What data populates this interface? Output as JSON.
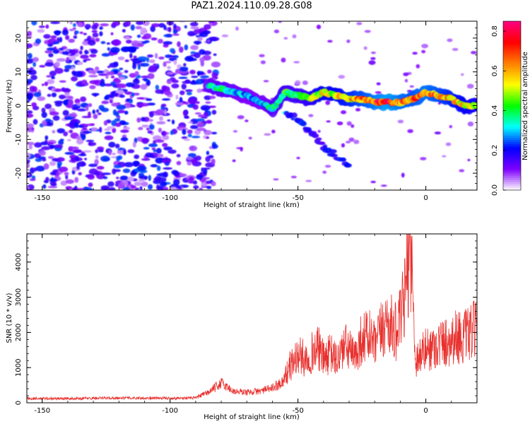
{
  "figure": {
    "title": "PAZ1.2024.110.09.28.G08"
  },
  "chart_data": [
    {
      "type": "heatmap",
      "xlabel": "Height of straight line (km)",
      "ylabel": "Frequency (Hz)",
      "xlim": [
        -156,
        20
      ],
      "ylim": [
        -25,
        25
      ],
      "x_ticks": [
        -150,
        -100,
        -50,
        0
      ],
      "y_ticks": [
        -20,
        -10,
        0,
        10,
        20
      ],
      "colorbar": {
        "label": "Normalized spectral amplitude",
        "range": [
          0.0,
          0.85
        ],
        "ticks": [
          0.0,
          0.2,
          0.4,
          0.6,
          0.8
        ],
        "colormap": [
          "#ffffff",
          "#7f00ff",
          "#0000ff",
          "#00ffff",
          "#00ff00",
          "#ffff00",
          "#ff8000",
          "#ff0000",
          "#ff0080"
        ]
      },
      "ridge": {
        "description_values": "dominant frequency (Hz) vs height (km)",
        "x": [
          -85,
          -80,
          -75,
          -70,
          -65,
          -60,
          -55,
          -50,
          -45,
          -40,
          -35,
          -30,
          -25,
          -20,
          -15,
          -10,
          -5,
          0,
          5,
          10,
          15,
          20
        ],
        "y": [
          6,
          5,
          4,
          3,
          1,
          -1,
          4,
          3,
          2,
          4,
          3,
          2,
          2,
          1,
          1,
          1,
          2,
          4,
          3,
          2,
          0,
          0
        ],
        "amplitude": [
          0.35,
          0.4,
          0.35,
          0.3,
          0.3,
          0.4,
          0.45,
          0.45,
          0.5,
          0.6,
          0.6,
          0.65,
          0.7,
          0.75,
          0.8,
          0.75,
          0.7,
          0.75,
          0.7,
          0.65,
          0.6,
          0.55
        ]
      },
      "branch": {
        "x": [
          -55,
          -50,
          -45,
          -40,
          -35,
          -30
        ],
        "y": [
          -2,
          -4,
          -8,
          -12,
          -15,
          -18
        ],
        "amplitude": [
          0.3,
          0.25,
          0.2,
          0.2,
          0.25,
          0.2
        ]
      },
      "noise_region": {
        "x_range": [
          -156,
          -82
        ],
        "amplitude": 0.25
      }
    },
    {
      "type": "line",
      "xlabel": "Height of straight line (km)",
      "ylabel": "SNR (10 * v/v)",
      "xlim": [
        -156,
        20
      ],
      "ylim": [
        0,
        4800
      ],
      "x_ticks": [
        -150,
        -100,
        -50,
        0
      ],
      "y_ticks": [
        0,
        1000,
        2000,
        3000,
        4000
      ],
      "series": [
        {
          "color": "#e8312e",
          "x": [
            -156,
            -140,
            -120,
            -100,
            -90,
            -85,
            -80,
            -75,
            -70,
            -65,
            -60,
            -56,
            -53,
            -50,
            -47,
            -45,
            -42,
            -40,
            -37,
            -35,
            -32,
            -30,
            -28,
            -25,
            -22,
            -20,
            -17,
            -15,
            -12,
            -10,
            -8,
            -7,
            -6,
            -5,
            -4,
            -2,
            0,
            3,
            6,
            9,
            12,
            15,
            18,
            20
          ],
          "y": [
            120,
            120,
            140,
            130,
            140,
            300,
            560,
            320,
            300,
            330,
            420,
            600,
            1050,
            1350,
            1250,
            1400,
            1550,
            1250,
            1400,
            1200,
            1600,
            1550,
            1250,
            1850,
            1900,
            1600,
            2100,
            2350,
            2000,
            2300,
            3100,
            4000,
            4700,
            2800,
            1200,
            1400,
            1500,
            1600,
            1700,
            1750,
            1900,
            1850,
            2000,
            2100
          ]
        }
      ]
    }
  ]
}
